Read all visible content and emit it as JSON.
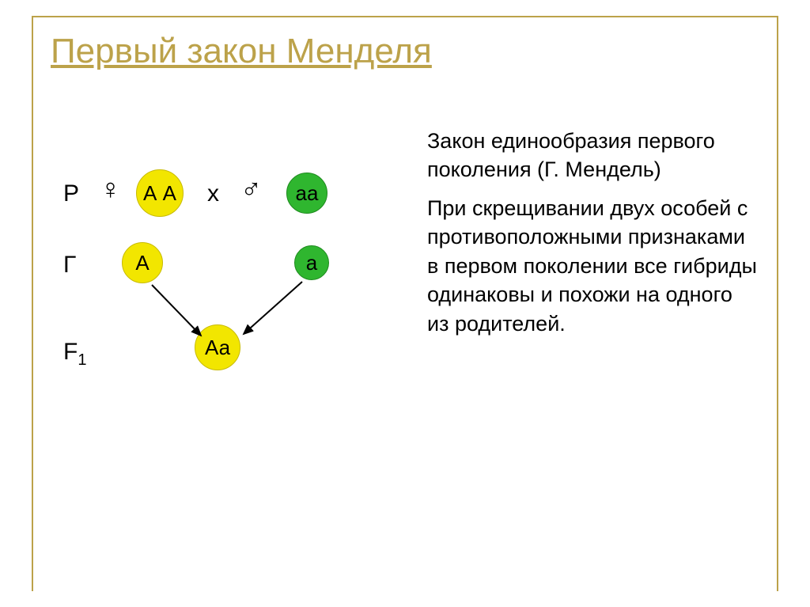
{
  "slide": {
    "title": "Первый закон Менделя",
    "title_color": "#bca24a",
    "frame_color": "#bca24a"
  },
  "text": {
    "p1": "Закон единообразия первого поколения (Г. Мендель)",
    "p2": "При скрещивании двух особей с противоположными признаками в первом поколении все гибриды одинаковы и похожи на одного из родителей."
  },
  "diagram": {
    "rows": {
      "P": "P",
      "G": "Г",
      "F1_prefix": "F",
      "F1_sub": "1"
    },
    "cross": "х",
    "female_symbol": "♀",
    "male_symbol": "♂",
    "circles": {
      "p_female": {
        "label": "А А",
        "fill": "#f2e600",
        "stroke": "#c8bb00",
        "size": 60
      },
      "p_male": {
        "label": "аа",
        "fill": "#2fb62f",
        "stroke": "#1e8a1e",
        "size": 52
      },
      "g_A": {
        "label": "А",
        "fill": "#f2e600",
        "stroke": "#c8bb00",
        "size": 52
      },
      "g_a": {
        "label": "а",
        "fill": "#2fb62f",
        "stroke": "#1e8a1e",
        "size": 44
      },
      "f1": {
        "label": "Аа",
        "fill": "#f2e600",
        "stroke": "#c8bb00",
        "size": 58
      }
    },
    "arrow_color": "#000000"
  }
}
